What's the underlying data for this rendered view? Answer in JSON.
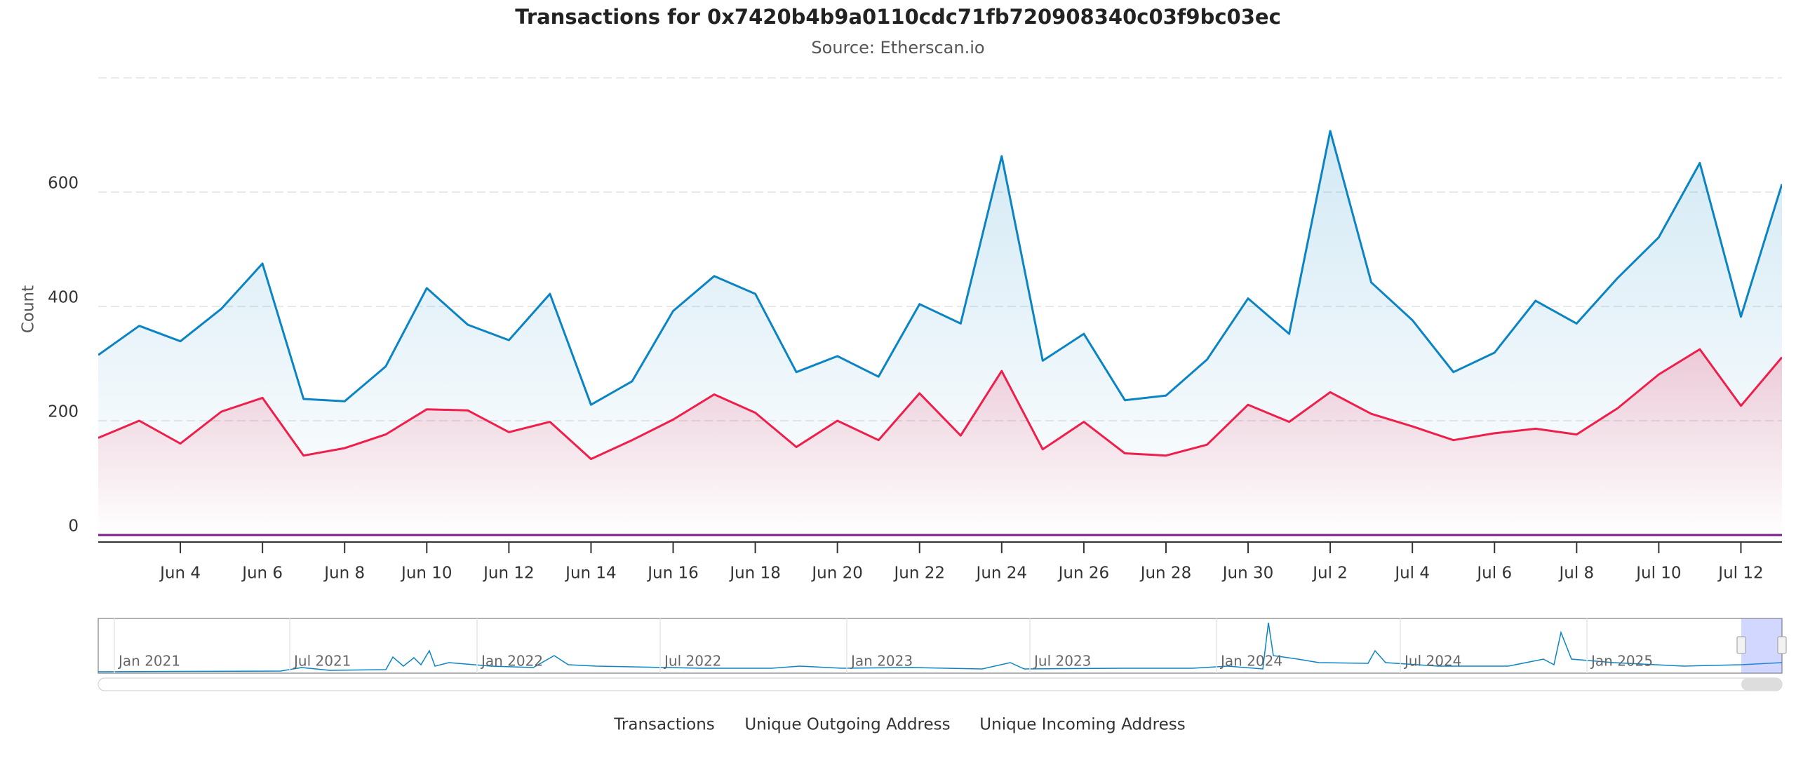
{
  "chart_data": {
    "type": "line",
    "title": "Transactions for 0x7420b4b9a0110cdc71fb720908340c03f9bc03ec",
    "subtitle": "Source: Etherscan.io",
    "y_label": "Count",
    "x": [
      "2025-06-02",
      "2025-06-03",
      "2025-06-04",
      "2025-06-05",
      "2025-06-06",
      "2025-06-07",
      "2025-06-08",
      "2025-06-09",
      "2025-06-10",
      "2025-06-11",
      "2025-06-12",
      "2025-06-13",
      "2025-06-14",
      "2025-06-15",
      "2025-06-16",
      "2025-06-17",
      "2025-06-18",
      "2025-06-19",
      "2025-06-20",
      "2025-06-21",
      "2025-06-22",
      "2025-06-23",
      "2025-06-24",
      "2025-06-25",
      "2025-06-26",
      "2025-06-27",
      "2025-06-28",
      "2025-06-29",
      "2025-06-30",
      "2025-07-01",
      "2025-07-02",
      "2025-07-03",
      "2025-07-04",
      "2025-07-05",
      "2025-07-06",
      "2025-07-07",
      "2025-07-08",
      "2025-07-09",
      "2025-07-10",
      "2025-07-11",
      "2025-07-12",
      "2025-07-13"
    ],
    "series": [
      {
        "name": "Transactions",
        "color": "#0b84c4",
        "values": [
          315,
          366,
          339,
          396,
          475,
          238,
          234,
          295,
          432,
          368,
          341,
          422,
          228,
          269,
          392,
          453,
          422,
          285,
          313,
          277,
          404,
          370,
          663,
          305,
          352,
          236,
          244,
          307,
          414,
          352,
          707,
          442,
          376,
          285,
          319,
          410,
          370,
          450,
          521,
          651,
          382,
          614
        ]
      },
      {
        "name": "Unique Outgoing Address",
        "color": "#ef1f4b",
        "values": [
          170,
          200,
          160,
          216,
          240,
          139,
          152,
          176,
          220,
          218,
          180,
          198,
          133,
          166,
          202,
          246,
          214,
          154,
          200,
          166,
          248,
          174,
          287,
          150,
          198,
          143,
          139,
          158,
          228,
          198,
          250,
          212,
          190,
          166,
          178,
          186,
          176,
          222,
          281,
          325,
          226,
          311
        ]
      },
      {
        "name": "Unique Incoming Address",
        "color": "#7b1f8c",
        "values": [
          0,
          0,
          0,
          0,
          0,
          0,
          0,
          0,
          0,
          0,
          0,
          0,
          0,
          0,
          0,
          0,
          0,
          0,
          0,
          0,
          0,
          0,
          0,
          0,
          0,
          0,
          0,
          0,
          0,
          0,
          0,
          0,
          0,
          0,
          0,
          0,
          0,
          0,
          0,
          0,
          0,
          0
        ]
      }
    ],
    "xlim": [
      "2025-06-02",
      "2025-07-13"
    ],
    "xticks": [
      {
        "value": "2025-06-04",
        "label": "Jun 4"
      },
      {
        "value": "2025-06-06",
        "label": "Jun 6"
      },
      {
        "value": "2025-06-08",
        "label": "Jun 8"
      },
      {
        "value": "2025-06-10",
        "label": "Jun 10"
      },
      {
        "value": "2025-06-12",
        "label": "Jun 12"
      },
      {
        "value": "2025-06-14",
        "label": "Jun 14"
      },
      {
        "value": "2025-06-16",
        "label": "Jun 16"
      },
      {
        "value": "2025-06-18",
        "label": "Jun 18"
      },
      {
        "value": "2025-06-20",
        "label": "Jun 20"
      },
      {
        "value": "2025-06-22",
        "label": "Jun 22"
      },
      {
        "value": "2025-06-24",
        "label": "Jun 24"
      },
      {
        "value": "2025-06-26",
        "label": "Jun 26"
      },
      {
        "value": "2025-06-28",
        "label": "Jun 28"
      },
      {
        "value": "2025-06-30",
        "label": "Jun 30"
      },
      {
        "value": "2025-07-02",
        "label": "Jul 2"
      },
      {
        "value": "2025-07-04",
        "label": "Jul 4"
      },
      {
        "value": "2025-07-06",
        "label": "Jul 6"
      },
      {
        "value": "2025-07-08",
        "label": "Jul 8"
      },
      {
        "value": "2025-07-10",
        "label": "Jul 10"
      },
      {
        "value": "2025-07-12",
        "label": "Jul 12"
      }
    ],
    "ylim": [
      0,
      800
    ],
    "yticks": [
      0,
      200,
      400,
      600
    ],
    "grid": true,
    "navigator_labels": [
      "Jan 2021",
      "Jul 2021",
      "Jan 2022",
      "Jul 2022",
      "Jan 2023",
      "Jul 2023",
      "Jan 2024",
      "Jul 2024",
      "Jan 2025"
    ]
  }
}
